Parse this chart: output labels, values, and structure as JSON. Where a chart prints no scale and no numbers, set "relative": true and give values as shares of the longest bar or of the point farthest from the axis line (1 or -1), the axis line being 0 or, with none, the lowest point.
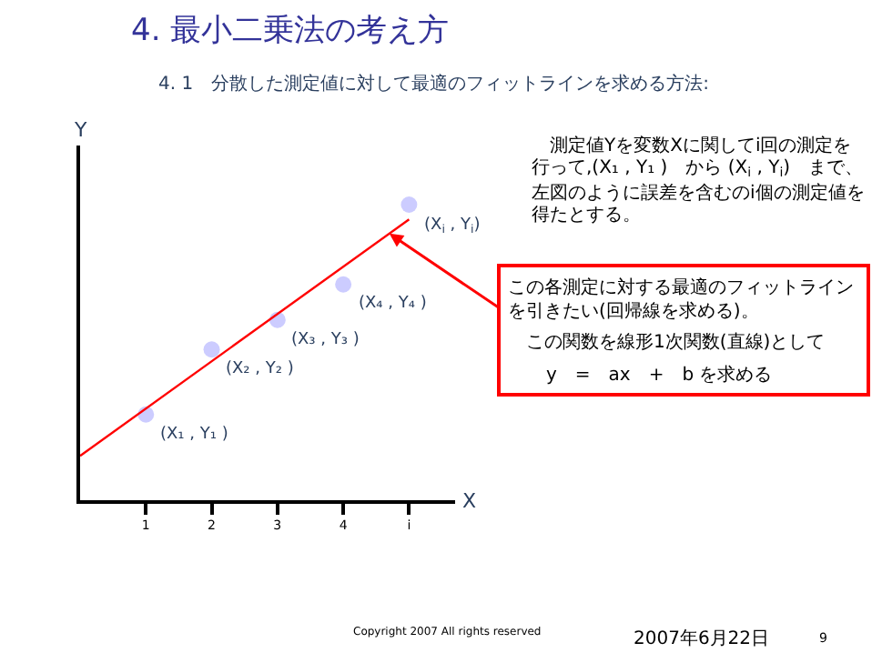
{
  "chart_data": {
    "type": "scatter",
    "relative": true,
    "title": "4. 最小二乗法の考え方",
    "subtitle": "4. 1　分散した測定値に対して最適のフィットラインを求める方法:",
    "xlabel": "X",
    "ylabel": "Y",
    "x": [
      1,
      2,
      3,
      4,
      5
    ],
    "xlim": [
      0,
      5.7
    ],
    "xticks": [
      1,
      2,
      3,
      4,
      {
        "value": 5,
        "label": "i"
      }
    ],
    "series": [
      {
        "color": "#ccccff",
        "values": [
          0.29,
          0.51,
          0.61,
          0.73,
          1.0
        ]
      },
      {
        "type": "line",
        "marker": "none",
        "color": "#ff0000",
        "x": [
          0,
          5
        ],
        "values": [
          0.15,
          0.95
        ]
      }
    ],
    "marker": "circle",
    "annotations": [
      {
        "text": "(X₁ , Y₁ )",
        "x": 1,
        "y": 0.29
      },
      {
        "text": "(X₂ , Y₂ )",
        "x": 2,
        "y": 0.51
      },
      {
        "text": "(X₃ , Y₃ )",
        "x": 3,
        "y": 0.61
      },
      {
        "text": "(X₄ , Y₄ )",
        "x": 4,
        "y": 0.73
      },
      {
        "text": "(X$_{i}$ , Y$_{i}$)",
        "x": 5,
        "y": 1.0
      },
      "　測定値Yを変数Xに関してi回の測定を",
      "行って,(X₁ , Y₁ )　から (X$_{i}$ , Y$_{i}$)　まで、",
      "左図のように誤差を含むのi個の測定値を",
      "得たとする。",
      "この各測定に対する最適のフィットライン",
      "を引きたい(回帰線を求める)。",
      "この関数を線形1次関数(直線)として",
      "y　=　ax　+　b を求める",
      "Copyright 2007 All rights reserved",
      "2007年6月22日",
      "9"
    ]
  }
}
